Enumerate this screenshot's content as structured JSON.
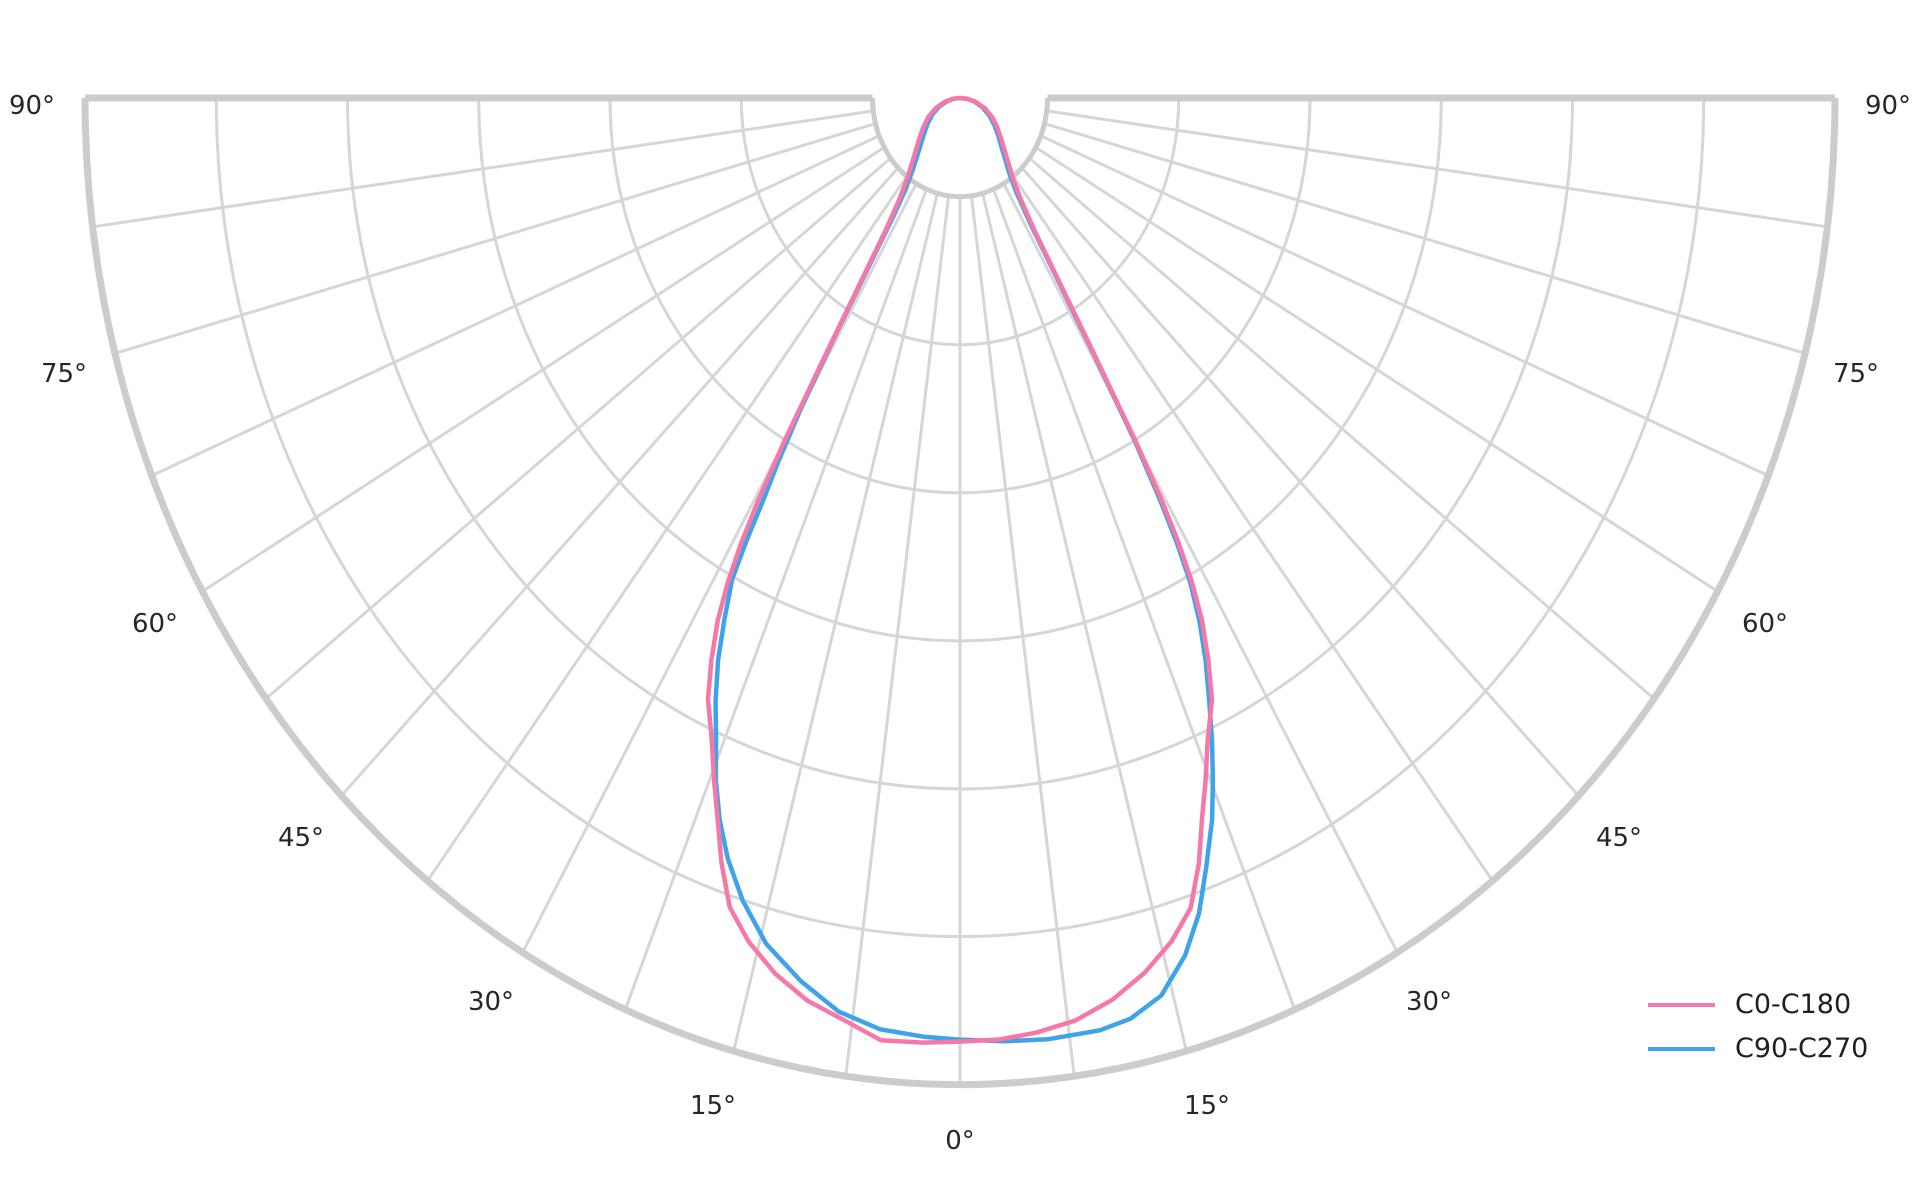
{
  "chart_data": {
    "type": "line",
    "subtype": "polar-photometric-distribution",
    "title": "",
    "angle_axis": {
      "unit": "degrees",
      "zero_position": "bottom",
      "range_deg": [
        -90,
        90
      ],
      "major_tick_step_deg": 15,
      "minor_tick_step_deg": 7.5,
      "tick_labels": [
        "0°",
        "15°",
        "30°",
        "45°",
        "60°",
        "75°",
        "90°"
      ]
    },
    "radial_axis": {
      "tick_labels_visible": false,
      "rings_normalized": [
        0.1,
        0.25,
        0.4,
        0.55,
        0.7,
        0.85,
        1.0
      ],
      "inner_hole_normalized": 0.1
    },
    "angle_labels": [
      {
        "angle": -90,
        "text": "90°"
      },
      {
        "angle": -75,
        "text": "75°"
      },
      {
        "angle": -60,
        "text": "60°"
      },
      {
        "angle": -45,
        "text": "45°"
      },
      {
        "angle": -30,
        "text": "30°"
      },
      {
        "angle": -15,
        "text": "15°"
      },
      {
        "angle": 0,
        "text": "0°"
      },
      {
        "angle": 15,
        "text": "15°"
      },
      {
        "angle": 30,
        "text": "30°"
      },
      {
        "angle": 45,
        "text": "45°"
      },
      {
        "angle": 60,
        "text": "60°"
      },
      {
        "angle": 75,
        "text": "75°"
      },
      {
        "angle": 90,
        "text": "90°"
      }
    ],
    "series": [
      {
        "name": "C0-C180",
        "color": "#f678a8",
        "points_angle_deg_intensity": [
          [
            -90,
            0.0
          ],
          [
            -84,
            0.008
          ],
          [
            -78,
            0.017
          ],
          [
            -70,
            0.029
          ],
          [
            -62,
            0.041
          ],
          [
            -55,
            0.051
          ],
          [
            -49,
            0.061
          ],
          [
            -44,
            0.072
          ],
          [
            -40,
            0.085
          ],
          [
            -36.5,
            0.101
          ],
          [
            -34,
            0.124
          ],
          [
            -32.4,
            0.158
          ],
          [
            -31.4,
            0.213
          ],
          [
            -30.6,
            0.3
          ],
          [
            -30.0,
            0.4
          ],
          [
            -29.5,
            0.468
          ],
          [
            -29.0,
            0.517
          ],
          [
            -28.4,
            0.558
          ],
          [
            -27.6,
            0.598
          ],
          [
            -26.5,
            0.637
          ],
          [
            -25.3,
            0.674
          ],
          [
            -23.5,
            0.711
          ],
          [
            -22.1,
            0.747
          ],
          [
            -20.7,
            0.783
          ],
          [
            -19.4,
            0.821
          ],
          [
            -17.8,
            0.861
          ],
          [
            -15.8,
            0.888
          ],
          [
            -13.4,
            0.912
          ],
          [
            -10.8,
            0.931
          ],
          [
            -8.0,
            0.944
          ],
          [
            -5.4,
            0.959
          ],
          [
            -2.5,
            0.958
          ],
          [
            0,
            0.956
          ],
          [
            2.7,
            0.955
          ],
          [
            5.2,
            0.951
          ],
          [
            8.0,
            0.944
          ],
          [
            10.8,
            0.93
          ],
          [
            13.4,
            0.911
          ],
          [
            15.8,
            0.888
          ],
          [
            17.8,
            0.862
          ],
          [
            19.4,
            0.822
          ],
          [
            20.7,
            0.782
          ],
          [
            22.1,
            0.746
          ],
          [
            23.5,
            0.71
          ],
          [
            25.3,
            0.674
          ],
          [
            26.5,
            0.636
          ],
          [
            27.6,
            0.597
          ],
          [
            28.4,
            0.557
          ],
          [
            29.0,
            0.515
          ],
          [
            29.5,
            0.468
          ],
          [
            30.0,
            0.4
          ],
          [
            30.6,
            0.3
          ],
          [
            31.4,
            0.214
          ],
          [
            32.4,
            0.159
          ],
          [
            34,
            0.125
          ],
          [
            36.5,
            0.102
          ],
          [
            40,
            0.086
          ],
          [
            44,
            0.073
          ],
          [
            49,
            0.062
          ],
          [
            55,
            0.052
          ],
          [
            62,
            0.042
          ],
          [
            70,
            0.03
          ],
          [
            78,
            0.018
          ],
          [
            84,
            0.009
          ],
          [
            90,
            0.0
          ]
        ]
      },
      {
        "name": "C90-C270",
        "color": "#3fa3ea",
        "points_angle_deg_intensity": [
          [
            -90,
            0.0
          ],
          [
            -84,
            0.007
          ],
          [
            -78,
            0.015
          ],
          [
            -70,
            0.025
          ],
          [
            -62,
            0.036
          ],
          [
            -55,
            0.045
          ],
          [
            -49,
            0.054
          ],
          [
            -44,
            0.064
          ],
          [
            -40,
            0.076
          ],
          [
            -36.5,
            0.091
          ],
          [
            -34,
            0.111
          ],
          [
            -32.4,
            0.142
          ],
          [
            -31.5,
            0.192
          ],
          [
            -30.7,
            0.275
          ],
          [
            -30.0,
            0.365
          ],
          [
            -29.4,
            0.425
          ],
          [
            -28.9,
            0.465
          ],
          [
            -28.55,
            0.51
          ],
          [
            -28.1,
            0.553
          ],
          [
            -27.0,
            0.593
          ],
          [
            -25.9,
            0.633
          ],
          [
            -24.6,
            0.671
          ],
          [
            -23.2,
            0.708
          ],
          [
            -22.0,
            0.745
          ],
          [
            -20.6,
            0.781
          ],
          [
            -19.0,
            0.815
          ],
          [
            -17.0,
            0.85
          ],
          [
            -14.5,
            0.885
          ],
          [
            -11.5,
            0.913
          ],
          [
            -8.5,
            0.936
          ],
          [
            -5.5,
            0.948
          ],
          [
            -2.5,
            0.952
          ],
          [
            0,
            0.954
          ],
          [
            3.0,
            0.957
          ],
          [
            6.0,
            0.959
          ],
          [
            9.6,
            0.958
          ],
          [
            11.8,
            0.953
          ],
          [
            14.2,
            0.938
          ],
          [
            16.5,
            0.906
          ],
          [
            18.3,
            0.87
          ],
          [
            19.8,
            0.83
          ],
          [
            21.5,
            0.786
          ],
          [
            22.7,
            0.749
          ],
          [
            23.9,
            0.711
          ],
          [
            25.0,
            0.674
          ],
          [
            26.2,
            0.636
          ],
          [
            27.3,
            0.597
          ],
          [
            28.2,
            0.557
          ],
          [
            28.8,
            0.515
          ],
          [
            29.3,
            0.468
          ],
          [
            29.9,
            0.4
          ],
          [
            30.5,
            0.3
          ],
          [
            31.3,
            0.21
          ],
          [
            32.3,
            0.15
          ],
          [
            34,
            0.115
          ],
          [
            36.5,
            0.095
          ],
          [
            40,
            0.08
          ],
          [
            44,
            0.068
          ],
          [
            49,
            0.058
          ],
          [
            55,
            0.048
          ],
          [
            62,
            0.038
          ],
          [
            70,
            0.027
          ],
          [
            78,
            0.017
          ],
          [
            84,
            0.008
          ],
          [
            90,
            0.0
          ]
        ]
      }
    ],
    "legend": {
      "position": "bottom-right",
      "entries": [
        {
          "label": "C0-C180",
          "color": "#f678a8"
        },
        {
          "label": "C90-C270",
          "color": "#3fa3ea"
        }
      ]
    },
    "colors": {
      "background": "#ffffff",
      "grid_minor": "#d6d6d6",
      "grid_boundary": "#cccccc",
      "tick_label_text": "#262626",
      "series_c0_c180": "#f678a8",
      "series_c90_c270": "#3fa3ea"
    }
  }
}
